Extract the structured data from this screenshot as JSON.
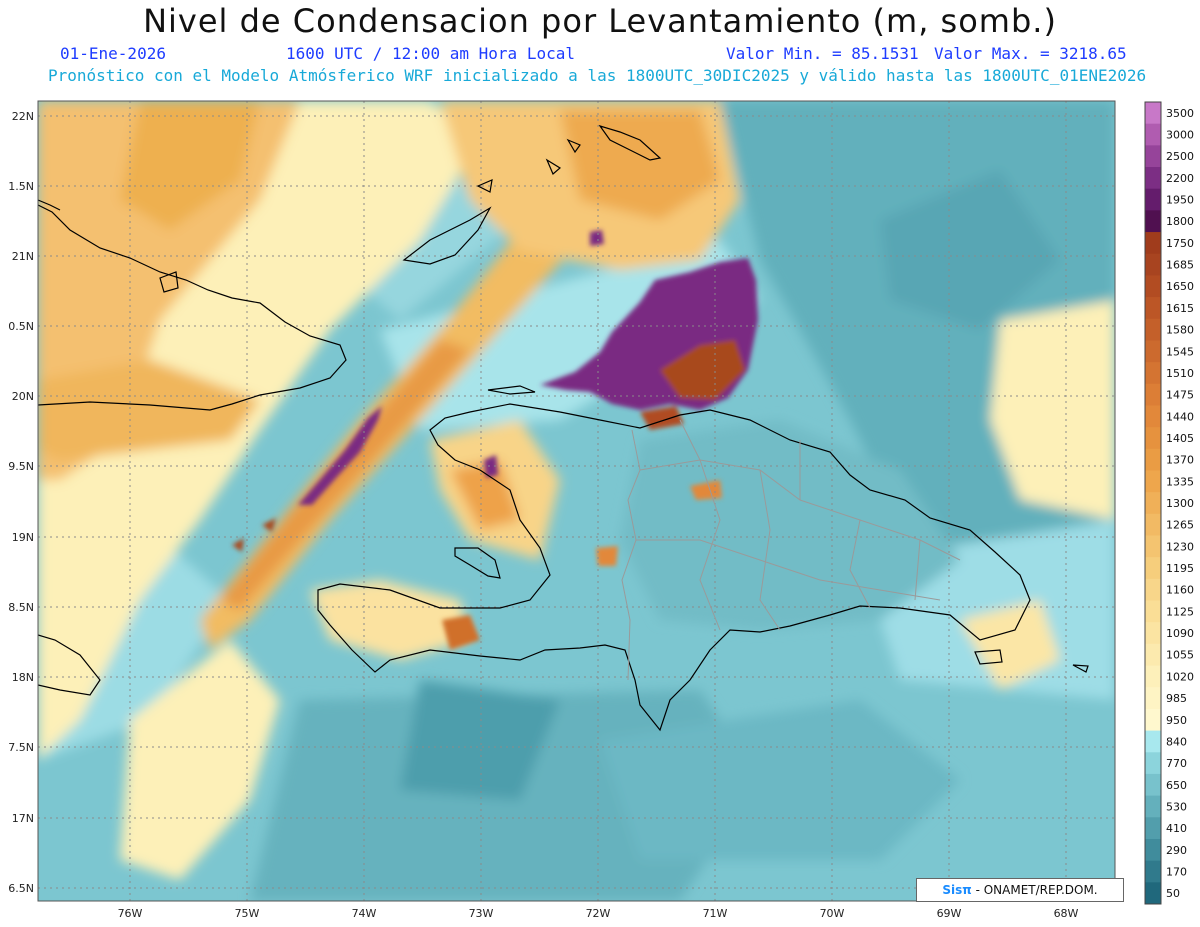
{
  "title": "Nivel de Condensacion por Levantamiento (m, somb.)",
  "date": "01-Ene-2026",
  "time": "1600 UTC / 12:00 am Hora Local",
  "min_text": "Valor Min. = 85.1531",
  "max_text": "Valor Max. = 3218.65",
  "forecast_text": "Pronóstico con el Modelo Atmósferico WRF inicializado a las 1800UTC_30DIC2025 y válido hasta las  1800UTC_01ENE2026",
  "lat_labels": [
    "22N",
    "1.5N",
    "21N",
    "0.5N",
    "20N",
    "9.5N",
    "19N",
    "8.5N",
    "18N",
    "7.5N",
    "17N",
    "6.5N"
  ],
  "lon_labels": [
    "76W",
    "75W",
    "74W",
    "73W",
    "72W",
    "71W",
    "70W",
    "69W",
    "68W"
  ],
  "colorbar": {
    "labels": [
      "3500",
      "3000",
      "2500",
      "2200",
      "1950",
      "1800",
      "1750",
      "1685",
      "1650",
      "1615",
      "1580",
      "1545",
      "1510",
      "1475",
      "1440",
      "1405",
      "1370",
      "1335",
      "1300",
      "1265",
      "1230",
      "1195",
      "1160",
      "1125",
      "1090",
      "1055",
      "1020",
      "985",
      "950",
      "840",
      "770",
      "650",
      "530",
      "410",
      "290",
      "170",
      "50"
    ],
    "colors": [
      "#c878c8",
      "#b05cb0",
      "#96449a",
      "#7c2e84",
      "#641c6c",
      "#501050",
      "#a03c1c",
      "#a84420",
      "#b24c22",
      "#bc5626",
      "#c4602a",
      "#cc6a2e",
      "#d47432",
      "#dc7e36",
      "#e2883a",
      "#e6923e",
      "#ea9c44",
      "#eea64c",
      "#f0b058",
      "#f2ba64",
      "#f4c470",
      "#f6ce7c",
      "#f8d68a",
      "#fade96",
      "#fbe4a2",
      "#fceaae",
      "#fdf0ba",
      "#fef4c4",
      "#fff8ce",
      "#a8e8ee",
      "#8cd4dc",
      "#78c2cc",
      "#64b0bc",
      "#529eac",
      "#408c9c",
      "#307a8c",
      "#20687c"
    ]
  },
  "credit_brand": "Sisπ",
  "credit_text": "- ONAMET/REP.DOM."
}
